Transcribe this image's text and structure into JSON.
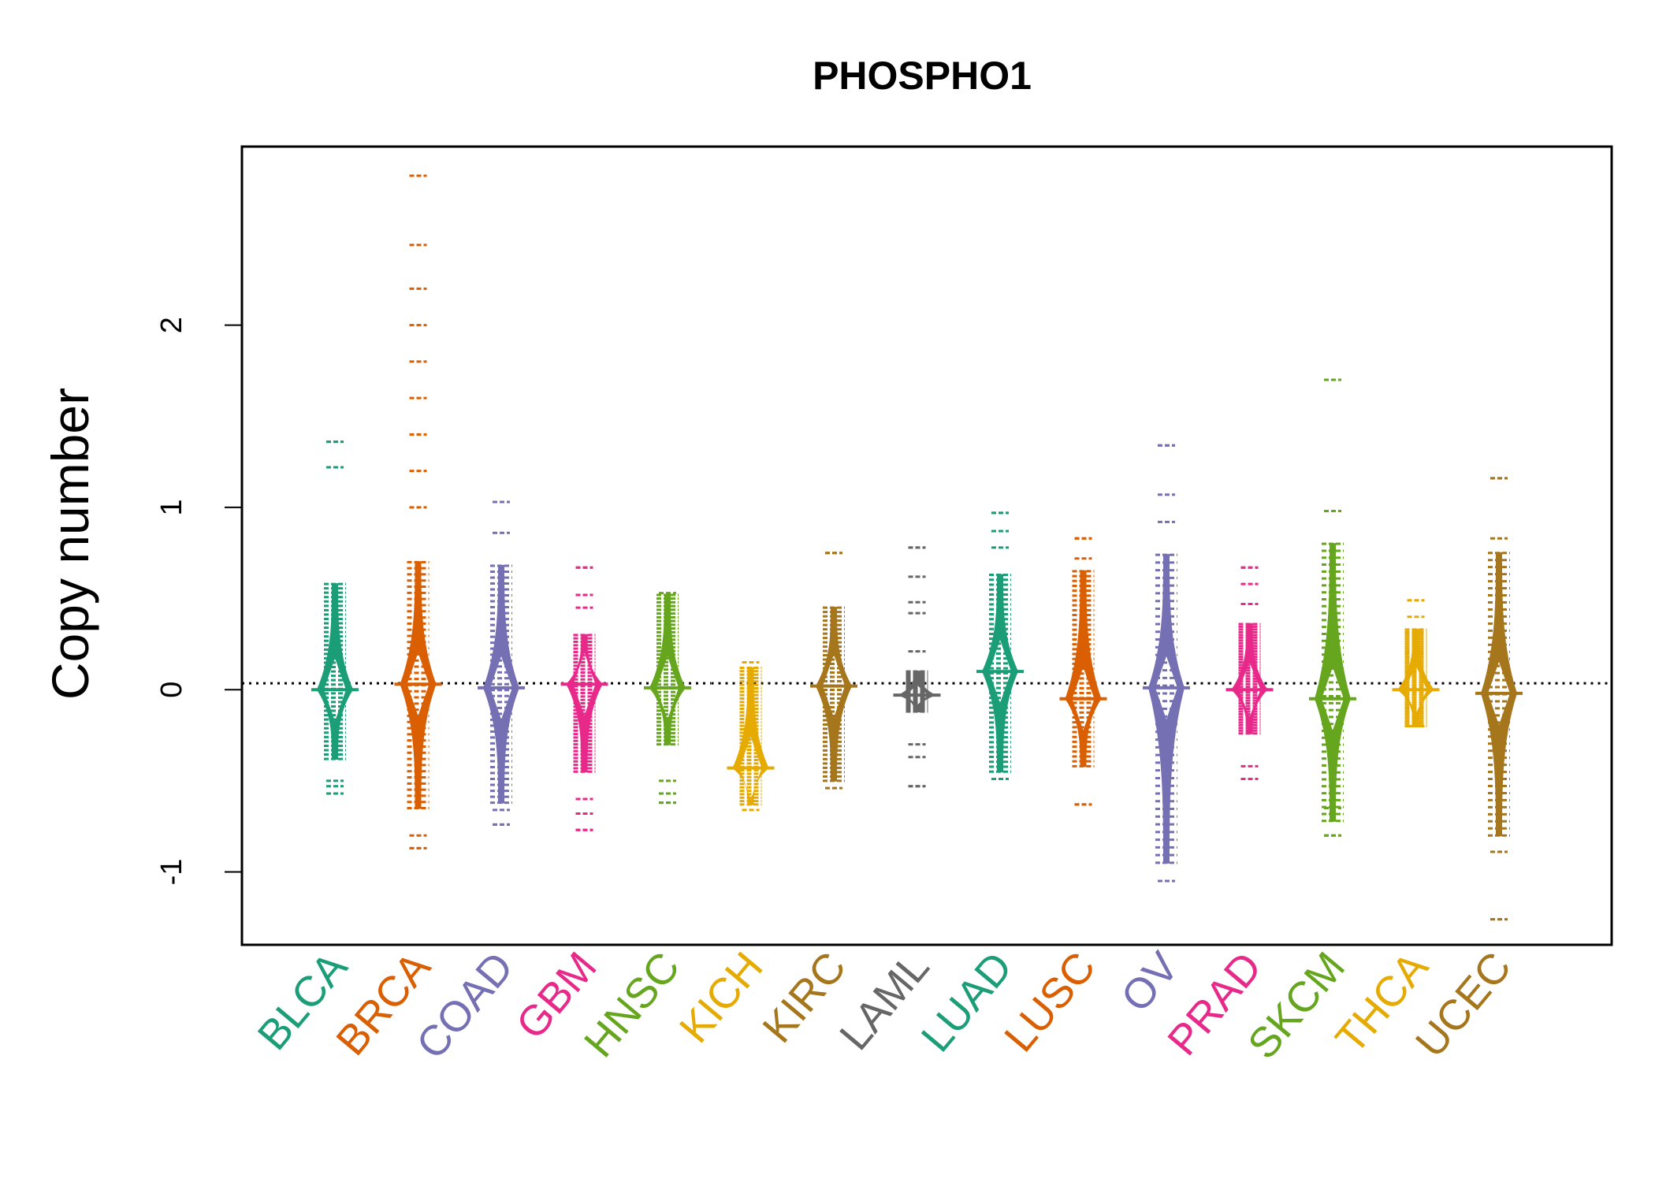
{
  "chart_data": {
    "type": "beanplot",
    "title": "PHOSPHO1",
    "xlabel": "",
    "ylabel": "Copy number",
    "ylim": [
      -1.4,
      2.98
    ],
    "yticks": [
      -1,
      0,
      1,
      2
    ],
    "reference_line": 0.035,
    "categories": [
      "BLCA",
      "BRCA",
      "COAD",
      "GBM",
      "HNSC",
      "KICH",
      "KIRC",
      "LAML",
      "LUAD",
      "LUSC",
      "OV",
      "PRAD",
      "SKCM",
      "THCA",
      "UCEC"
    ],
    "colors": [
      "#1B9E77",
      "#D95F02",
      "#7570B3",
      "#E7298A",
      "#66A61E",
      "#E6AB02",
      "#A6761D",
      "#666666",
      "#1B9E77",
      "#D95F02",
      "#7570B3",
      "#E7298A",
      "#66A61E",
      "#E6AB02",
      "#A6761D"
    ],
    "series": [
      {
        "name": "BLCA",
        "min": -0.57,
        "max": 1.36,
        "mean": 0.0,
        "bean_top": 0.58,
        "bean_bottom": -0.38,
        "outliers": [
          -0.57,
          -0.53,
          -0.5,
          1.22,
          1.36
        ]
      },
      {
        "name": "BRCA",
        "min": -0.87,
        "max": 2.82,
        "mean": 0.03,
        "bean_top": 0.7,
        "bean_bottom": -0.65,
        "outliers": [
          -0.87,
          -0.8,
          1.0,
          1.2,
          1.4,
          1.6,
          1.8,
          2.0,
          2.2,
          2.44,
          2.82
        ]
      },
      {
        "name": "COAD",
        "min": -0.74,
        "max": 1.03,
        "mean": 0.01,
        "bean_top": 0.68,
        "bean_bottom": -0.62,
        "outliers": [
          -0.74,
          -0.66,
          0.86,
          1.03
        ]
      },
      {
        "name": "GBM",
        "min": -0.77,
        "max": 0.67,
        "mean": 0.03,
        "bean_top": 0.3,
        "bean_bottom": -0.45,
        "outliers": [
          -0.77,
          -0.68,
          -0.6,
          0.45,
          0.52,
          0.67
        ]
      },
      {
        "name": "HNSC",
        "min": -0.62,
        "max": 0.53,
        "mean": 0.01,
        "bean_top": 0.52,
        "bean_bottom": -0.3,
        "outliers": [
          -0.62,
          -0.57,
          -0.5
        ]
      },
      {
        "name": "KICH",
        "min": -0.66,
        "max": 0.15,
        "mean": -0.43,
        "bean_top": 0.12,
        "bean_bottom": -0.63,
        "outliers": []
      },
      {
        "name": "KIRC",
        "min": -0.54,
        "max": 0.75,
        "mean": 0.02,
        "bean_top": 0.45,
        "bean_bottom": -0.5,
        "outliers": [
          0.75
        ]
      },
      {
        "name": "LAML",
        "min": -0.53,
        "max": 0.78,
        "mean": -0.03,
        "bean_top": 0.1,
        "bean_bottom": -0.12,
        "outliers": [
          -0.53,
          -0.37,
          -0.3,
          0.21,
          0.42,
          0.48,
          0.62,
          0.78
        ]
      },
      {
        "name": "LUAD",
        "min": -0.49,
        "max": 0.97,
        "mean": 0.1,
        "bean_top": 0.63,
        "bean_bottom": -0.45,
        "outliers": [
          -0.49,
          0.78,
          0.87,
          0.97
        ]
      },
      {
        "name": "LUSC",
        "min": -0.63,
        "max": 0.83,
        "mean": -0.05,
        "bean_top": 0.65,
        "bean_bottom": -0.42,
        "outliers": [
          -0.63,
          0.72,
          0.83
        ]
      },
      {
        "name": "OV",
        "min": -1.05,
        "max": 1.34,
        "mean": 0.01,
        "bean_top": 0.74,
        "bean_bottom": -0.95,
        "outliers": [
          -1.05,
          0.92,
          1.07,
          1.34
        ]
      },
      {
        "name": "PRAD",
        "min": -0.49,
        "max": 0.67,
        "mean": 0.0,
        "bean_top": 0.36,
        "bean_bottom": -0.24,
        "outliers": [
          -0.49,
          -0.42,
          0.47,
          0.58,
          0.67
        ]
      },
      {
        "name": "SKCM",
        "min": -0.8,
        "max": 1.7,
        "mean": -0.05,
        "bean_top": 0.8,
        "bean_bottom": -0.72,
        "outliers": [
          -0.8,
          -0.65,
          0.98,
          1.7
        ]
      },
      {
        "name": "THCA",
        "min": -0.2,
        "max": 0.49,
        "mean": 0.0,
        "bean_top": 0.33,
        "bean_bottom": -0.2,
        "outliers": [
          0.4,
          0.49
        ]
      },
      {
        "name": "UCEC",
        "min": -1.26,
        "max": 1.16,
        "mean": -0.02,
        "bean_top": 0.75,
        "bean_bottom": -0.8,
        "outliers": [
          -1.26,
          -0.89,
          0.83,
          1.16
        ]
      }
    ]
  }
}
